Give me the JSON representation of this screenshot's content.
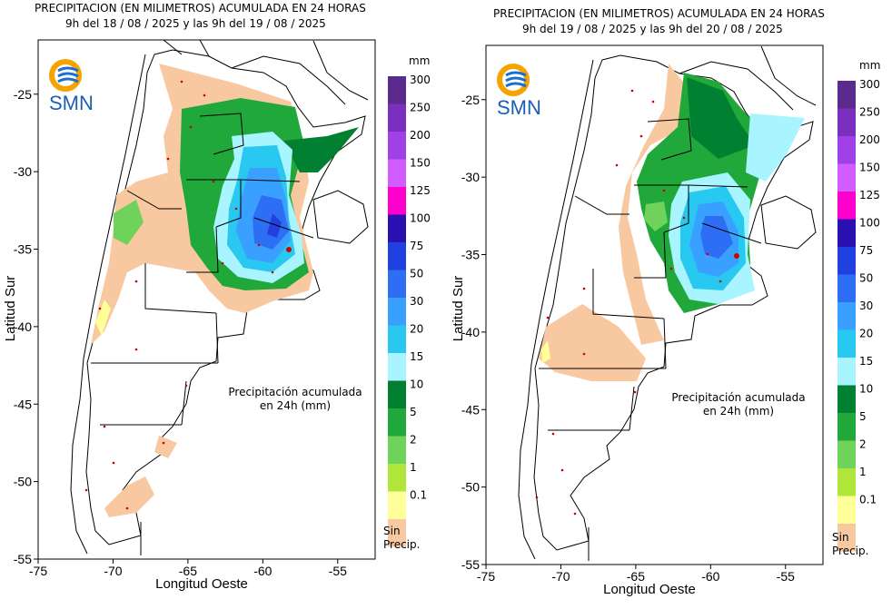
{
  "panels": [
    {
      "title": "PRECIPITACION (EN MILIMETROS) ACUMULADA EN 24 HORAS",
      "subtitle": "9h del 18 / 08 / 2025  y las 9h del 19 / 08 / 2025",
      "annotation": [
        "Precipitación acumulada",
        "en 24h (mm)"
      ]
    },
    {
      "title": "PRECIPITACION (EN MILIMETROS) ACUMULADA EN 24 HORAS",
      "subtitle": "9h del 19 / 08 / 2025  y las 9h del 20 / 08 / 2025",
      "annotation": [
        "Precipitación acumulada",
        "en 24h (mm)"
      ]
    }
  ],
  "logo": {
    "text": "SMN"
  },
  "axes": {
    "xlabel": "Longitud Oeste",
    "ylabel": "Latitud Sur",
    "xticks": [
      "-75",
      "-70",
      "-65",
      "-60",
      "-55"
    ],
    "yticks": [
      "-25",
      "-30",
      "-35",
      "-40",
      "-45",
      "-50",
      "-55"
    ],
    "xticks_values": [
      -75,
      -70,
      -65,
      -60,
      -55
    ],
    "yticks_values": [
      -25,
      -30,
      -35,
      -40,
      -45,
      -50,
      -55
    ],
    "xlim": [
      -75,
      -52.5
    ],
    "ylim": [
      -55,
      -21.5
    ]
  },
  "legend": {
    "unit": "mm",
    "no_precip": [
      "Sin",
      "Precip."
    ],
    "levels": [
      {
        "label": "300",
        "color": "#5a2a8c"
      },
      {
        "label": "250",
        "color": "#7b2fbf"
      },
      {
        "label": "200",
        "color": "#a040e8"
      },
      {
        "label": "150",
        "color": "#d15cff"
      },
      {
        "label": "125",
        "color": "#ff00cc"
      },
      {
        "label": "100",
        "color": "#2a10b0"
      },
      {
        "label": "75",
        "color": "#2040e0"
      },
      {
        "label": "50",
        "color": "#2e6ef5"
      },
      {
        "label": "30",
        "color": "#3aa0ff"
      },
      {
        "label": "20",
        "color": "#29c8f0"
      },
      {
        "label": "15",
        "color": "#a8f5ff"
      },
      {
        "label": "10",
        "color": "#008030"
      },
      {
        "label": "5",
        "color": "#21a83a"
      },
      {
        "label": "2",
        "color": "#6fd25a"
      },
      {
        "label": "1",
        "color": "#b0e63a"
      },
      {
        "label": "0.1",
        "color": "#ffff9a"
      },
      {
        "label": "",
        "color": "#f8c9a0"
      }
    ]
  }
}
